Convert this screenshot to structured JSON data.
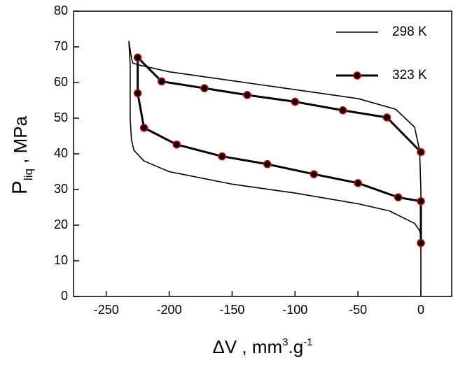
{
  "chart_data": {
    "type": "line",
    "xlabel": {
      "main": "ΔV ,  mm",
      "sup1": "3",
      "mid": ".g",
      "sup2": "-1"
    },
    "ylabel": {
      "main": "P",
      "sub": "liq",
      "rest": " ,  MPa"
    },
    "xlim": [
      -276,
      24.5
    ],
    "ylim": [
      0,
      80
    ],
    "xticks": [
      -250,
      -200,
      -150,
      -100,
      -50,
      0
    ],
    "yticks": [
      0,
      10,
      20,
      30,
      40,
      50,
      60,
      70,
      80
    ],
    "legend": "upper right",
    "series": [
      {
        "name": "298 K",
        "color": "#000000",
        "markers": false,
        "x": [
          0,
          0,
          -1,
          -5,
          -25,
          -50,
          -100,
          -150,
          -200,
          -220,
          -228,
          -230,
          -231,
          -231,
          -232,
          -230,
          -229,
          -225,
          -200,
          -150,
          -100,
          -50,
          -20,
          -5,
          -1,
          0,
          0
        ],
        "y": [
          0,
          17,
          18.5,
          20.5,
          24,
          26,
          29,
          31.5,
          35,
          38,
          41,
          44,
          50,
          65,
          71.5,
          67,
          65.5,
          65,
          63,
          60.5,
          58,
          55.5,
          52.5,
          47.5,
          41,
          30,
          0
        ]
      },
      {
        "name": "323 K",
        "color": "#000000",
        "marker_edge": "#cc0000",
        "markers": true,
        "x": [
          0,
          0,
          -18,
          -50,
          -85,
          -122,
          -158,
          -194,
          -220,
          -225,
          -225,
          -206,
          -172,
          -138,
          -100,
          -62,
          -27,
          0
        ],
        "y": [
          15,
          26.7,
          27.8,
          31.8,
          34.3,
          37.1,
          39.3,
          42.6,
          47.3,
          57,
          67,
          60.3,
          58.4,
          56.5,
          54.6,
          52.2,
          50.2,
          40.5
        ]
      }
    ]
  }
}
